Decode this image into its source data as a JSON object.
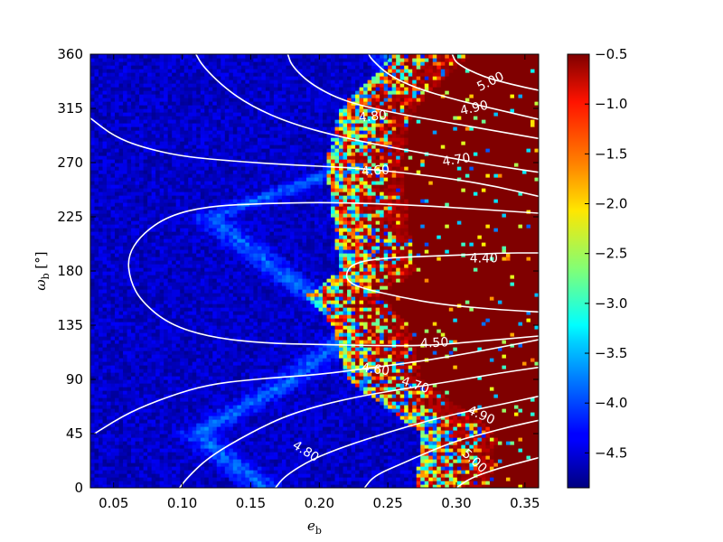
{
  "chart_data": {
    "type": "heatmap",
    "xlabel": "e_b",
    "ylabel": "ω_b [°]",
    "xlim": [
      0.033,
      0.36
    ],
    "ylim": [
      0,
      360
    ],
    "x_ticks": [
      0.05,
      0.1,
      0.15,
      0.2,
      0.25,
      0.3,
      0.35
    ],
    "x_tick_labels": [
      "0.05",
      "0.10",
      "0.15",
      "0.20",
      "0.25",
      "0.30",
      "0.35"
    ],
    "y_ticks": [
      0,
      45,
      90,
      135,
      180,
      225,
      270,
      315,
      360
    ],
    "y_tick_labels": [
      "0",
      "45",
      "90",
      "135",
      "180",
      "225",
      "270",
      "315",
      "360"
    ],
    "colorbar": {
      "range": [
        -4.85,
        -0.5
      ],
      "ticks": [
        -0.5,
        -1.0,
        -1.5,
        -2.0,
        -2.5,
        -3.0,
        -3.5,
        -4.0,
        -4.5
      ],
      "tick_labels": [
        "−0.5",
        "−1.0",
        "−1.5",
        "−2.0",
        "−2.5",
        "−3.0",
        "−3.5",
        "−4.0",
        "−4.5"
      ],
      "colormap": "jet"
    },
    "heatmap_description_values": {
      "stable_region_value": -4.2,
      "chaotic_region_value": -0.5,
      "transition_boundary_e": [
        {
          "w": 0,
          "e": 0.285
        },
        {
          "w": 45,
          "e": 0.29
        },
        {
          "w": 90,
          "e": 0.235
        },
        {
          "w": 135,
          "e": 0.225
        },
        {
          "w": 160,
          "e": 0.205
        },
        {
          "w": 180,
          "e": 0.23
        },
        {
          "w": 225,
          "e": 0.225
        },
        {
          "w": 270,
          "e": 0.22
        },
        {
          "w": 315,
          "e": 0.23
        },
        {
          "w": 360,
          "e": 0.27
        }
      ],
      "bright_band_centers": [
        {
          "w": 0,
          "e": 0.16
        },
        {
          "w": 45,
          "e": 0.11
        },
        {
          "w": 90,
          "e": 0.18
        },
        {
          "w": 135,
          "e": 0.23
        },
        {
          "w": 180,
          "e": 0.17
        },
        {
          "w": 225,
          "e": 0.12
        },
        {
          "w": 270,
          "e": 0.23
        },
        {
          "w": 315,
          "e": 0.27
        },
        {
          "w": 360,
          "e": 0.25
        }
      ]
    },
    "contours": [
      {
        "label": "4.40",
        "points": [
          [
            0.36,
            195
          ],
          [
            0.33,
            195
          ],
          [
            0.3,
            193
          ],
          [
            0.27,
            192
          ],
          [
            0.24,
            190
          ],
          [
            0.225,
            186
          ],
          [
            0.22,
            180
          ],
          [
            0.22,
            172
          ],
          [
            0.23,
            166
          ],
          [
            0.26,
            158
          ],
          [
            0.29,
            152
          ],
          [
            0.33,
            148
          ],
          [
            0.36,
            146
          ]
        ]
      },
      {
        "label": "4.50",
        "points": [
          [
            0.36,
            228
          ],
          [
            0.32,
            231
          ],
          [
            0.28,
            234
          ],
          [
            0.24,
            236
          ],
          [
            0.2,
            237
          ],
          [
            0.16,
            236
          ],
          [
            0.12,
            234
          ],
          [
            0.09,
            226
          ],
          [
            0.07,
            210
          ],
          [
            0.06,
            192
          ],
          [
            0.062,
            172
          ],
          [
            0.07,
            155
          ],
          [
            0.09,
            136
          ],
          [
            0.12,
            125
          ],
          [
            0.16,
            120
          ],
          [
            0.2,
            119
          ],
          [
            0.24,
            118
          ],
          [
            0.28,
            118
          ],
          [
            0.32,
            122
          ],
          [
            0.36,
            126
          ]
        ]
      },
      {
        "label": "4.60",
        "points": [
          [
            0.36,
            242
          ],
          [
            0.33,
            250
          ],
          [
            0.3,
            256
          ],
          [
            0.26,
            262
          ],
          [
            0.22,
            266
          ],
          [
            0.18,
            268
          ],
          [
            0.14,
            271
          ],
          [
            0.1,
            275
          ],
          [
            0.07,
            283
          ],
          [
            0.05,
            292
          ],
          [
            0.033,
            307
          ]
        ]
      },
      {
        "label": "4.60b",
        "points": [
          [
            0.036,
            45
          ],
          [
            0.06,
            62
          ],
          [
            0.09,
            76
          ],
          [
            0.12,
            86
          ],
          [
            0.16,
            91
          ],
          [
            0.2,
            94
          ],
          [
            0.24,
            100
          ],
          [
            0.28,
            106
          ],
          [
            0.32,
            114
          ],
          [
            0.36,
            123
          ]
        ]
      },
      {
        "label": "4.70",
        "points": [
          [
            0.36,
            262
          ],
          [
            0.33,
            267
          ],
          [
            0.3,
            273
          ],
          [
            0.26,
            281
          ],
          [
            0.22,
            290
          ],
          [
            0.18,
            302
          ],
          [
            0.15,
            317
          ],
          [
            0.13,
            333
          ],
          [
            0.115,
            350
          ],
          [
            0.11,
            360
          ]
        ]
      },
      {
        "label": "4.70b",
        "points": [
          [
            0.098,
            0
          ],
          [
            0.105,
            10
          ],
          [
            0.12,
            26
          ],
          [
            0.15,
            46
          ],
          [
            0.18,
            62
          ],
          [
            0.22,
            74
          ],
          [
            0.26,
            82
          ],
          [
            0.3,
            89
          ],
          [
            0.33,
            95
          ],
          [
            0.36,
            100
          ]
        ]
      },
      {
        "label": "4.80",
        "points": [
          [
            0.36,
            290
          ],
          [
            0.33,
            296
          ],
          [
            0.3,
            302
          ],
          [
            0.26,
            310
          ],
          [
            0.22,
            320
          ],
          [
            0.195,
            334
          ],
          [
            0.18,
            350
          ],
          [
            0.177,
            360
          ]
        ]
      },
      {
        "label": "4.80b",
        "points": [
          [
            0.168,
            0
          ],
          [
            0.175,
            10
          ],
          [
            0.195,
            24
          ],
          [
            0.22,
            35
          ],
          [
            0.25,
            46
          ],
          [
            0.28,
            56
          ],
          [
            0.31,
            64
          ],
          [
            0.34,
            71
          ],
          [
            0.36,
            76
          ]
        ]
      },
      {
        "label": "4.90",
        "points": [
          [
            0.36,
            306
          ],
          [
            0.33,
            314
          ],
          [
            0.3,
            322
          ],
          [
            0.27,
            332
          ],
          [
            0.25,
            343
          ],
          [
            0.238,
            356
          ],
          [
            0.236,
            360
          ]
        ]
      },
      {
        "label": "4.90b",
        "points": [
          [
            0.233,
            0
          ],
          [
            0.24,
            10
          ],
          [
            0.26,
            20
          ],
          [
            0.28,
            30
          ],
          [
            0.3,
            39
          ],
          [
            0.32,
            45
          ],
          [
            0.34,
            51
          ],
          [
            0.36,
            56
          ]
        ]
      },
      {
        "label": "5.00",
        "points": [
          [
            0.36,
            330
          ],
          [
            0.34,
            335
          ],
          [
            0.32,
            341
          ],
          [
            0.3,
            352
          ],
          [
            0.297,
            360
          ]
        ]
      },
      {
        "label": "5.00b",
        "points": [
          [
            0.3,
            0
          ],
          [
            0.31,
            8
          ],
          [
            0.33,
            16
          ],
          [
            0.35,
            22
          ],
          [
            0.36,
            25
          ]
        ]
      }
    ],
    "contour_labels": [
      {
        "text": "4.40",
        "e": 0.32,
        "w": 190,
        "angle": 0
      },
      {
        "text": "4.50",
        "e": 0.284,
        "w": 120,
        "angle": -3
      },
      {
        "text": "4.60",
        "e": 0.241,
        "w": 263,
        "angle": -4
      },
      {
        "text": "4.80",
        "e": 0.239,
        "w": 308,
        "angle": -6
      },
      {
        "text": "4.70",
        "e": 0.3,
        "w": 272,
        "angle": -9
      },
      {
        "text": "4.90",
        "e": 0.313,
        "w": 315,
        "angle": -13
      },
      {
        "text": "5.00",
        "e": 0.325,
        "w": 337,
        "angle": -26
      },
      {
        "text": "4.60",
        "e": 0.241,
        "w": 98,
        "angle": 8
      },
      {
        "text": "4.70",
        "e": 0.27,
        "w": 85,
        "angle": 18
      },
      {
        "text": "4.90",
        "e": 0.318,
        "w": 60,
        "angle": 24
      },
      {
        "text": "4.80",
        "e": 0.19,
        "w": 30,
        "angle": 32
      },
      {
        "text": "5.00",
        "e": 0.313,
        "w": 22,
        "angle": 42
      }
    ]
  }
}
